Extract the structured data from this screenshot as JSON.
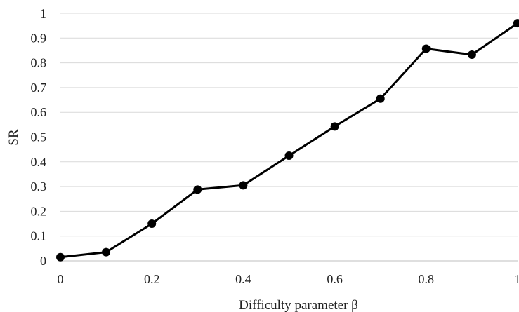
{
  "chart_data": {
    "type": "line",
    "title": "",
    "xlabel": "Difficulty parameter β",
    "ylabel": "SR",
    "xlim": [
      0,
      1
    ],
    "ylim": [
      0,
      1
    ],
    "x_ticks": [
      "0",
      "0.2",
      "0.4",
      "0.6",
      "0.8",
      "1"
    ],
    "y_ticks": [
      "0",
      "0.1",
      "0.2",
      "0.3",
      "0.4",
      "0.5",
      "0.6",
      "0.7",
      "0.8",
      "0.9",
      "1"
    ],
    "grid": "horizontal",
    "legend": "none",
    "series": [
      {
        "x": [
          0,
          0.1,
          0.2,
          0.3,
          0.4,
          0.5,
          0.6,
          0.7,
          0.8,
          0.9,
          1.0
        ],
        "y": [
          0.015,
          0.035,
          0.15,
          0.288,
          0.305,
          0.425,
          0.543,
          0.655,
          0.857,
          0.833,
          0.96
        ],
        "color": "#000000",
        "marker": "circle"
      }
    ]
  }
}
